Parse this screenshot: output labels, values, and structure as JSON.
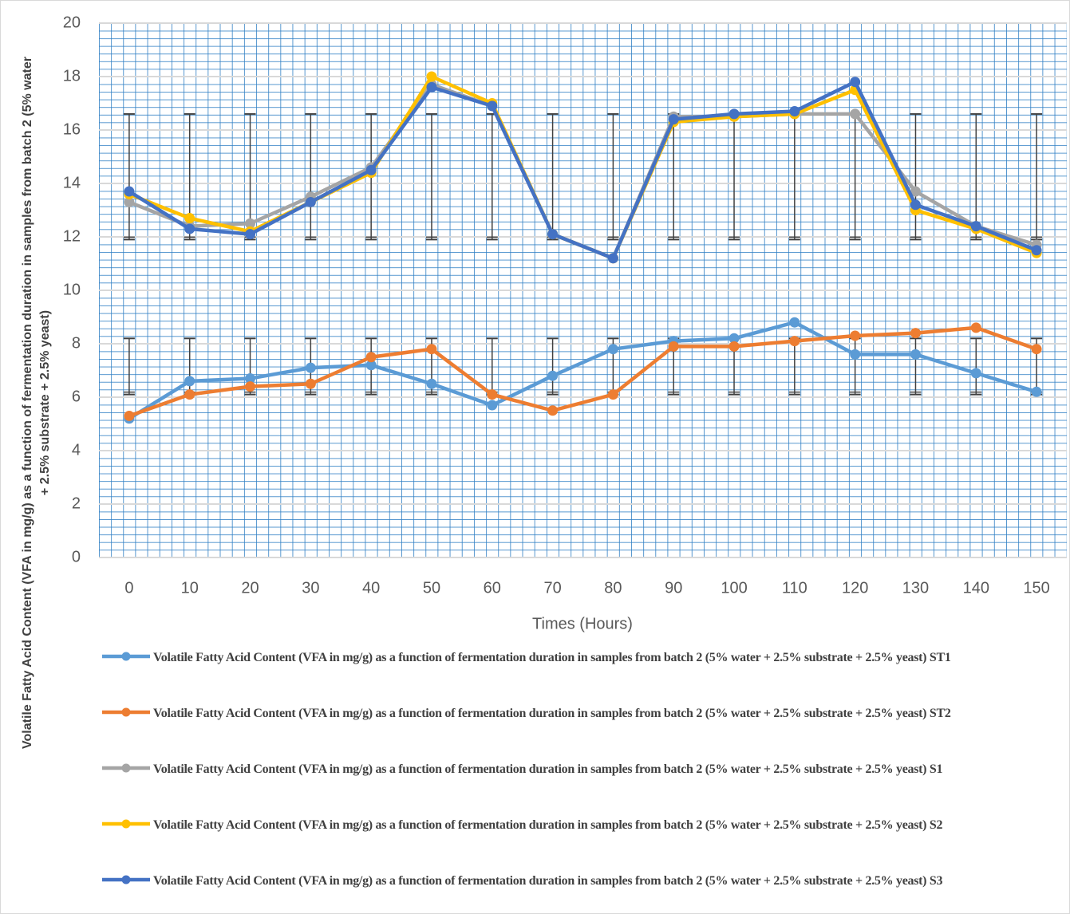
{
  "chart_data": {
    "type": "line",
    "x_label": "Times (Hours)",
    "y_label": "Volatile Fatty Acid Content (VFA in mg/g) as a function of fermentation duration in samples from batch 2 (5% water + 2.5% substrate + 2.5% yeast)",
    "categories": [
      0,
      10,
      20,
      30,
      40,
      50,
      60,
      70,
      80,
      90,
      100,
      110,
      120,
      130,
      140,
      150
    ],
    "ylim": [
      0,
      20
    ],
    "yticks": [
      0,
      2,
      4,
      6,
      8,
      10,
      12,
      14,
      16,
      18,
      20
    ],
    "grid": true,
    "legend": "bottom",
    "error_bars": [
      {
        "low": 11.9,
        "high": 16.6
      },
      {
        "low": 6.1,
        "high": 8.2
      }
    ],
    "series": [
      {
        "name": "Volatile Fatty Acid Content (VFA in mg/g) as a function of fermentation duration in samples from batch 2 (5% water + 2.5% substrate + 2.5% yeast) ST1",
        "color": "#5b9bd5",
        "values": [
          5.2,
          6.6,
          6.7,
          7.1,
          7.2,
          6.5,
          5.7,
          6.8,
          7.8,
          8.1,
          8.2,
          8.8,
          7.6,
          7.6,
          6.9,
          6.2
        ]
      },
      {
        "name": "Volatile Fatty Acid Content (VFA in mg/g) as a function of fermentation duration in samples from batch 2 (5% water + 2.5% substrate + 2.5% yeast) ST2",
        "color": "#ed7d31",
        "values": [
          5.3,
          6.1,
          6.4,
          6.5,
          7.5,
          7.8,
          6.1,
          5.5,
          6.1,
          7.9,
          7.9,
          8.1,
          8.3,
          8.4,
          8.6,
          7.8
        ]
      },
      {
        "name": "Volatile Fatty Acid Content (VFA in mg/g) as a function of fermentation duration in samples from batch 2 (5% water + 2.5% substrate + 2.5% yeast) S1",
        "color": "#a5a5a5",
        "values": [
          13.3,
          12.4,
          12.5,
          13.5,
          14.6,
          17.7,
          16.9,
          12.1,
          11.2,
          16.5,
          16.5,
          16.6,
          16.6,
          13.7,
          12.4,
          11.7
        ]
      },
      {
        "name": "Volatile Fatty Acid Content (VFA in mg/g) as a function of fermentation duration in samples from batch 2 (5% water + 2.5% substrate + 2.5% yeast) S2",
        "color": "#ffc000",
        "values": [
          13.6,
          12.7,
          12.2,
          13.3,
          14.4,
          18.0,
          17.0,
          12.1,
          11.2,
          16.3,
          16.5,
          16.6,
          17.5,
          13.0,
          12.3,
          11.4
        ]
      },
      {
        "name": "Volatile Fatty Acid Content (VFA in mg/g) as a function of fermentation duration in samples from batch 2 (5% water + 2.5% substrate + 2.5% yeast) S3",
        "color": "#4472c4",
        "values": [
          13.7,
          12.3,
          12.1,
          13.3,
          14.5,
          17.6,
          16.9,
          12.1,
          11.2,
          16.4,
          16.6,
          16.7,
          17.8,
          13.2,
          12.4,
          11.5
        ]
      }
    ]
  }
}
